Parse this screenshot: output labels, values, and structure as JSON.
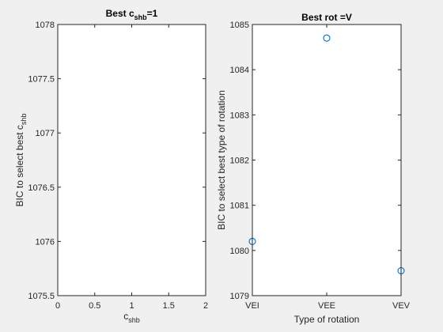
{
  "chart_data": [
    {
      "type": "scatter",
      "title_main": "Best c",
      "title_sub": "shb",
      "title_tail": "=1",
      "xlabel_main": "c",
      "xlabel_sub": "shb",
      "ylabel_main": "BIC to select best c",
      "ylabel_sub": "shb",
      "xlim": [
        0,
        2
      ],
      "ylim": [
        1075.5,
        1078
      ],
      "xticks": [
        0,
        0.5,
        1,
        1.5,
        2
      ],
      "xtick_labels": [
        "0",
        "0.5",
        "1",
        "1.5",
        "2"
      ],
      "yticks": [
        1075.5,
        1076,
        1076.5,
        1077,
        1077.5,
        1078
      ],
      "ytick_labels": [
        "1075.5",
        "1076",
        "1076.5",
        "1077",
        "1077.5",
        "1078"
      ],
      "points": [],
      "marker_color": "#0072bd"
    },
    {
      "type": "scatter",
      "title": "Best rot =V",
      "xlabel": "Type of rotation",
      "ylabel": "BIC to select best type of rotation",
      "categories": [
        "VEI",
        "VEE",
        "VEV"
      ],
      "values": [
        1080.2,
        1084.7,
        1079.55
      ],
      "ylim": [
        1079,
        1085
      ],
      "yticks": [
        1079,
        1080,
        1081,
        1082,
        1083,
        1084,
        1085
      ],
      "ytick_labels": [
        "1079",
        "1080",
        "1081",
        "1082",
        "1083",
        "1084",
        "1085"
      ],
      "marker_color": "#0072bd"
    }
  ]
}
